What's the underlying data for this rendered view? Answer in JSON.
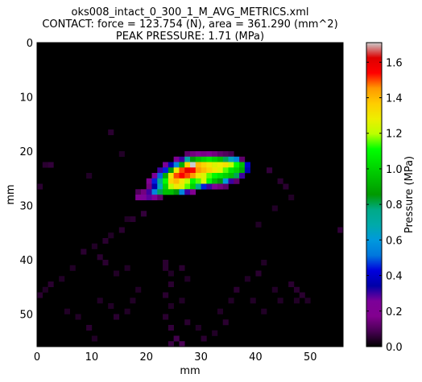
{
  "chart_data": {
    "type": "heatmap",
    "title": [
      "oks008_intact_0_300_1_M_AVG_METRICS.xml",
      "CONTACT: force = 123.754 (N), area = 361.290 (mm^2)",
      "PEAK PRESSURE: 1.71 (MPa)"
    ],
    "xlabel": "mm",
    "ylabel": "mm",
    "xlim": [
      0,
      56
    ],
    "ylim": [
      56,
      0
    ],
    "xticks": [
      "0",
      "10",
      "20",
      "30",
      "40",
      "50"
    ],
    "yticks": [
      "0",
      "10",
      "20",
      "30",
      "40",
      "50"
    ],
    "grid": false,
    "colormap": "spectral",
    "colorbar": {
      "label": "Pressure (MPa)",
      "range": [
        0.0,
        1.71
      ],
      "ticks": [
        "0.0",
        "0.2",
        "0.4",
        "0.6",
        "0.8",
        "1.0",
        "1.2",
        "1.4",
        "1.6"
      ]
    },
    "cell_value_unit": "MPa",
    "cells": [
      [
        27,
        20,
        0.12
      ],
      [
        28,
        20,
        0.15
      ],
      [
        29,
        20,
        0.18
      ],
      [
        30,
        20,
        0.16
      ],
      [
        31,
        20,
        0.18
      ],
      [
        32,
        20,
        0.15
      ],
      [
        33,
        20,
        0.12
      ],
      [
        34,
        20,
        0.1
      ],
      [
        35,
        20,
        0.08
      ],
      [
        25,
        21,
        0.22
      ],
      [
        26,
        21,
        0.3
      ],
      [
        27,
        21,
        0.7
      ],
      [
        28,
        21,
        0.85
      ],
      [
        29,
        21,
        0.95
      ],
      [
        30,
        21,
        1.0
      ],
      [
        31,
        21,
        1.05
      ],
      [
        32,
        21,
        1.0
      ],
      [
        33,
        21,
        0.95
      ],
      [
        34,
        21,
        0.8
      ],
      [
        35,
        21,
        0.65
      ],
      [
        36,
        21,
        0.55
      ],
      [
        37,
        21,
        0.12
      ],
      [
        23,
        22,
        0.25
      ],
      [
        24,
        22,
        0.35
      ],
      [
        25,
        22,
        0.55
      ],
      [
        26,
        22,
        0.9
      ],
      [
        27,
        22,
        1.35
      ],
      [
        28,
        22,
        1.71
      ],
      [
        29,
        22,
        1.4
      ],
      [
        30,
        22,
        1.35
      ],
      [
        31,
        22,
        1.3
      ],
      [
        32,
        22,
        1.25
      ],
      [
        33,
        22,
        1.28
      ],
      [
        34,
        22,
        1.32
      ],
      [
        35,
        22,
        1.2
      ],
      [
        36,
        22,
        1.1
      ],
      [
        37,
        22,
        0.95
      ],
      [
        38,
        22,
        0.4
      ],
      [
        22,
        23,
        0.3
      ],
      [
        23,
        23,
        0.45
      ],
      [
        24,
        23,
        0.85
      ],
      [
        25,
        23,
        1.3
      ],
      [
        26,
        23,
        1.5
      ],
      [
        27,
        23,
        1.6
      ],
      [
        28,
        23,
        1.55
      ],
      [
        29,
        23,
        1.45
      ],
      [
        30,
        23,
        1.4
      ],
      [
        31,
        23,
        1.35
      ],
      [
        32,
        23,
        1.3
      ],
      [
        33,
        23,
        1.25
      ],
      [
        34,
        23,
        1.15
      ],
      [
        35,
        23,
        1.05
      ],
      [
        36,
        23,
        1.0
      ],
      [
        37,
        23,
        0.9
      ],
      [
        38,
        23,
        0.35
      ],
      [
        21,
        24,
        0.25
      ],
      [
        22,
        24,
        0.5
      ],
      [
        23,
        24,
        0.9
      ],
      [
        24,
        24,
        1.3
      ],
      [
        25,
        24,
        1.5
      ],
      [
        26,
        24,
        1.55
      ],
      [
        27,
        24,
        1.5
      ],
      [
        28,
        24,
        1.45
      ],
      [
        29,
        24,
        1.3
      ],
      [
        30,
        24,
        1.25
      ],
      [
        31,
        24,
        1.15
      ],
      [
        32,
        24,
        1.1
      ],
      [
        33,
        24,
        1.05
      ],
      [
        34,
        24,
        1.0
      ],
      [
        35,
        24,
        0.95
      ],
      [
        36,
        24,
        0.8
      ],
      [
        37,
        24,
        0.3
      ],
      [
        20,
        25,
        0.2
      ],
      [
        21,
        25,
        0.45
      ],
      [
        22,
        25,
        0.75
      ],
      [
        23,
        25,
        1.1
      ],
      [
        24,
        25,
        1.35
      ],
      [
        25,
        25,
        1.4
      ],
      [
        26,
        25,
        1.3
      ],
      [
        27,
        25,
        1.2
      ],
      [
        28,
        25,
        1.1
      ],
      [
        29,
        25,
        1.15
      ],
      [
        30,
        25,
        1.25
      ],
      [
        31,
        25,
        1.1
      ],
      [
        32,
        25,
        0.95
      ],
      [
        33,
        25,
        0.85
      ],
      [
        34,
        25,
        0.6
      ],
      [
        35,
        25,
        0.3
      ],
      [
        36,
        25,
        0.12
      ],
      [
        20,
        26,
        0.15
      ],
      [
        21,
        26,
        0.35
      ],
      [
        22,
        26,
        0.65
      ],
      [
        23,
        26,
        1.0
      ],
      [
        24,
        26,
        1.2
      ],
      [
        25,
        26,
        1.3
      ],
      [
        26,
        26,
        1.25
      ],
      [
        27,
        26,
        1.15
      ],
      [
        28,
        26,
        1.0
      ],
      [
        29,
        26,
        0.75
      ],
      [
        30,
        26,
        0.45
      ],
      [
        31,
        26,
        0.3
      ],
      [
        32,
        26,
        0.22
      ],
      [
        33,
        26,
        0.15
      ],
      [
        34,
        26,
        0.12
      ],
      [
        18,
        27,
        0.1
      ],
      [
        19,
        27,
        0.15
      ],
      [
        20,
        27,
        0.3
      ],
      [
        21,
        27,
        0.55
      ],
      [
        22,
        27,
        0.8
      ],
      [
        23,
        27,
        0.95
      ],
      [
        24,
        27,
        0.95
      ],
      [
        25,
        27,
        0.85
      ],
      [
        26,
        27,
        0.55
      ],
      [
        27,
        27,
        0.3
      ],
      [
        28,
        27,
        0.18
      ],
      [
        18,
        28,
        0.2
      ],
      [
        19,
        28,
        0.25
      ],
      [
        20,
        28,
        0.28
      ],
      [
        21,
        28,
        0.22
      ],
      [
        22,
        28,
        0.12
      ],
      [
        19,
        31,
        0.06
      ],
      [
        17,
        32,
        0.05
      ],
      [
        15,
        34,
        0.05
      ],
      [
        13,
        35,
        0.04
      ],
      [
        12,
        36,
        0.05
      ],
      [
        10,
        37,
        0.04
      ],
      [
        8,
        38,
        0.05
      ],
      [
        11,
        39,
        0.05
      ],
      [
        6,
        41,
        0.04
      ],
      [
        4,
        43,
        0.04
      ],
      [
        2,
        44,
        0.05
      ],
      [
        1,
        45,
        0.04
      ],
      [
        0,
        46,
        0.05
      ],
      [
        23,
        40,
        0.05
      ],
      [
        23,
        41,
        0.05
      ],
      [
        24,
        42,
        0.04
      ],
      [
        24,
        44,
        0.05
      ],
      [
        23,
        46,
        0.05
      ],
      [
        24,
        48,
        0.04
      ],
      [
        23,
        50,
        0.05
      ],
      [
        24,
        52,
        0.06
      ],
      [
        25,
        54,
        0.08
      ],
      [
        26,
        55,
        0.09
      ],
      [
        24,
        55,
        0.07
      ],
      [
        26,
        41,
        0.05
      ],
      [
        27,
        43,
        0.04
      ],
      [
        26,
        47,
        0.04
      ],
      [
        27,
        51,
        0.05
      ],
      [
        29,
        52,
        0.04
      ],
      [
        30,
        54,
        0.05
      ],
      [
        32,
        53,
        0.04
      ],
      [
        34,
        51,
        0.05
      ],
      [
        33,
        49,
        0.04
      ],
      [
        35,
        47,
        0.04
      ],
      [
        36,
        45,
        0.05
      ],
      [
        38,
        43,
        0.04
      ],
      [
        40,
        42,
        0.05
      ],
      [
        41,
        40,
        0.04
      ],
      [
        46,
        44,
        0.05
      ],
      [
        47,
        45,
        0.05
      ],
      [
        48,
        46,
        0.05
      ],
      [
        49,
        47,
        0.04
      ],
      [
        47,
        47,
        0.04
      ],
      [
        43,
        45,
        0.04
      ],
      [
        44,
        47,
        0.04
      ],
      [
        18,
        45,
        0.04
      ],
      [
        17,
        47,
        0.04
      ],
      [
        16,
        49,
        0.04
      ],
      [
        14,
        50,
        0.05
      ],
      [
        13,
        48,
        0.04
      ],
      [
        11,
        47,
        0.04
      ],
      [
        7,
        50,
        0.04
      ],
      [
        5,
        49,
        0.04
      ],
      [
        9,
        52,
        0.05
      ],
      [
        10,
        54,
        0.04
      ],
      [
        12,
        40,
        0.05
      ],
      [
        14,
        42,
        0.04
      ],
      [
        16,
        41,
        0.04
      ],
      [
        2,
        22,
        0.06
      ],
      [
        1,
        22,
        0.05
      ],
      [
        0,
        26,
        0.05
      ],
      [
        9,
        24,
        0.04
      ],
      [
        13,
        16,
        0.05
      ],
      [
        15,
        20,
        0.04
      ],
      [
        16,
        32,
        0.04
      ],
      [
        42,
        23,
        0.06
      ],
      [
        44,
        25,
        0.05
      ],
      [
        45,
        26,
        0.05
      ],
      [
        46,
        28,
        0.04
      ],
      [
        43,
        30,
        0.04
      ],
      [
        40,
        33,
        0.04
      ],
      [
        55,
        34,
        0.06
      ],
      [
        39,
        47,
        0.04
      ],
      [
        41,
        49,
        0.04
      ]
    ]
  }
}
